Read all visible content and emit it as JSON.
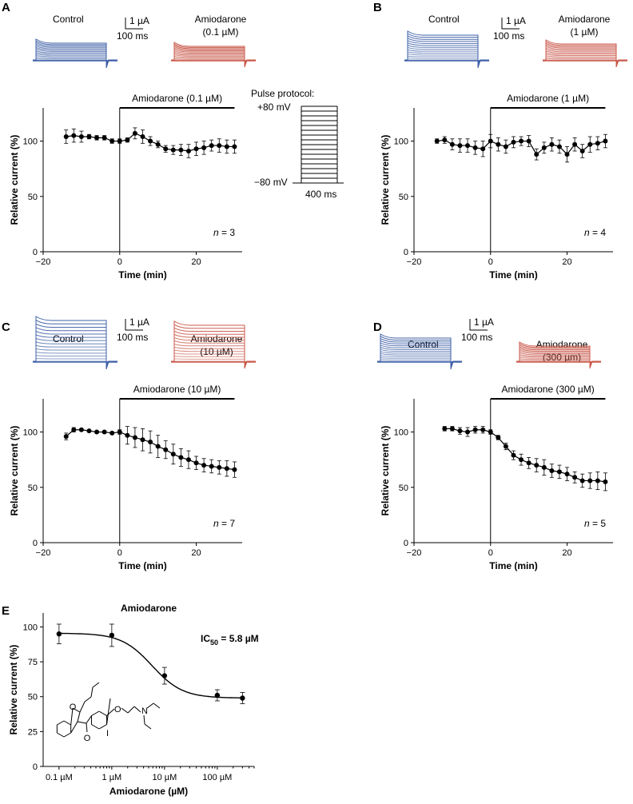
{
  "figure": {
    "units": {
      "current": "1 µA",
      "time": "100 ms"
    },
    "pulse": {
      "title": "Pulse protocol:",
      "top": "+80 mV",
      "bottom": "−80 mV",
      "duration": "400 ms"
    },
    "colors": {
      "control": "#3d5fa6",
      "drug": "#c9584a"
    }
  },
  "panels": [
    {
      "letter": "A",
      "control_label": "Control",
      "drug_label_line1": "Amiodarone",
      "drug_label_line2": "(0.1 µM)",
      "bar_label": "Amiodarone (0.1 µM)",
      "n": "3"
    },
    {
      "letter": "B",
      "control_label": "Control",
      "drug_label_line1": "Amiodarone",
      "drug_label_line2": "(1 µM)",
      "bar_label": "Amiodarone (1 µM)",
      "n": "4"
    },
    {
      "letter": "C",
      "control_label": "Control",
      "drug_label_line1": "Amiodarone",
      "drug_label_line2": "(10 µM)",
      "bar_label": "Amiodarone (10 µM)",
      "n": "7"
    },
    {
      "letter": "D",
      "control_label": "Control",
      "drug_label_line1": "Amiodarone",
      "drug_label_line2": "(300 µm)",
      "bar_label": "Amiodarone (300 µM)",
      "n": "5"
    }
  ],
  "panelE": {
    "letter": "E",
    "title": "Amiodarone",
    "ic50_main": "IC",
    "ic50_sub": "50",
    "ic50_rest": " = 5.8 µM"
  },
  "chart_data": [
    {
      "type": "line",
      "panel": "A",
      "xlabel": "Time (min)",
      "ylabel": "Relative current (%)",
      "xlim": [
        -20,
        32
      ],
      "ylim": [
        0,
        130
      ],
      "xticks": [
        -20,
        0,
        20
      ],
      "yticks": [
        0,
        50,
        100
      ],
      "drug_start": 0,
      "drug_end": 30,
      "x": [
        -14,
        -12,
        -10,
        -8,
        -6,
        -4,
        -2,
        0,
        2,
        4,
        6,
        8,
        10,
        12,
        14,
        16,
        18,
        20,
        22,
        24,
        26,
        28,
        30
      ],
      "y": [
        104,
        105,
        104,
        104,
        103,
        103,
        100,
        100,
        101,
        107,
        104,
        100,
        97,
        93,
        92,
        92,
        91,
        93,
        94,
        96,
        96,
        95,
        95
      ],
      "err": [
        6,
        6,
        5,
        2,
        2,
        2,
        2,
        2,
        2,
        5,
        6,
        4,
        3,
        3,
        4,
        5,
        6,
        6,
        6,
        5,
        6,
        6,
        6
      ]
    },
    {
      "type": "line",
      "panel": "B",
      "xlabel": "Time (min)",
      "ylabel": "Relative current (%)",
      "xlim": [
        -20,
        32
      ],
      "ylim": [
        0,
        130
      ],
      "xticks": [
        -20,
        0,
        20
      ],
      "yticks": [
        0,
        50,
        100
      ],
      "drug_start": 0,
      "drug_end": 30,
      "x": [
        -14,
        -12,
        -10,
        -8,
        -6,
        -4,
        -2,
        0,
        2,
        4,
        6,
        8,
        10,
        12,
        14,
        16,
        18,
        20,
        22,
        24,
        26,
        28,
        30
      ],
      "y": [
        100,
        101,
        97,
        96,
        96,
        94,
        93,
        100,
        97,
        95,
        99,
        100,
        100,
        88,
        94,
        97,
        95,
        88,
        97,
        91,
        97,
        98,
        100
      ],
      "err": [
        2,
        3,
        5,
        6,
        6,
        6,
        7,
        6,
        6,
        6,
        5,
        4,
        5,
        5,
        5,
        6,
        6,
        7,
        6,
        6,
        7,
        6,
        6
      ]
    },
    {
      "type": "line",
      "panel": "C",
      "xlabel": "Time (min)",
      "ylabel": "Relative current (%)",
      "xlim": [
        -20,
        32
      ],
      "ylim": [
        0,
        130
      ],
      "xticks": [
        -20,
        0,
        20
      ],
      "yticks": [
        0,
        50,
        100
      ],
      "drug_start": 0,
      "drug_end": 30,
      "x": [
        -14,
        -12,
        -10,
        -8,
        -6,
        -4,
        -2,
        0,
        2,
        4,
        6,
        8,
        10,
        12,
        14,
        16,
        18,
        20,
        22,
        24,
        26,
        28,
        30
      ],
      "y": [
        96,
        102,
        102,
        101,
        100,
        100,
        99,
        100,
        97,
        95,
        93,
        91,
        87,
        84,
        80,
        77,
        75,
        72,
        70,
        69,
        68,
        67,
        66
      ],
      "err": [
        3,
        2,
        1,
        1,
        1,
        1,
        1,
        2,
        8,
        9,
        10,
        10,
        10,
        8,
        9,
        8,
        8,
        6,
        6,
        6,
        6,
        7,
        7
      ]
    },
    {
      "type": "line",
      "panel": "D",
      "xlabel": "Time (min)",
      "ylabel": "Relative current (%)",
      "xlim": [
        -20,
        32
      ],
      "ylim": [
        0,
        130
      ],
      "xticks": [
        -20,
        0,
        20
      ],
      "yticks": [
        0,
        50,
        100
      ],
      "drug_start": 0,
      "drug_end": 30,
      "x": [
        -12,
        -10,
        -8,
        -6,
        -4,
        -2,
        0,
        2,
        4,
        6,
        8,
        10,
        12,
        14,
        16,
        18,
        20,
        22,
        24,
        26,
        28,
        30
      ],
      "y": [
        103,
        103,
        101,
        100,
        102,
        102,
        100,
        95,
        87,
        79,
        75,
        72,
        70,
        68,
        65,
        64,
        62,
        59,
        56,
        56,
        56,
        55
      ],
      "err": [
        2,
        2,
        3,
        4,
        3,
        3,
        2,
        2,
        3,
        4,
        5,
        5,
        6,
        7,
        6,
        6,
        6,
        5,
        6,
        7,
        8,
        8
      ]
    },
    {
      "type": "scatter",
      "panel": "E",
      "xlabel": "Amiodarone (µM)",
      "ylabel": "Relative current (%)",
      "xscale": "log",
      "xlim": [
        0.05,
        500
      ],
      "ylim": [
        0,
        110
      ],
      "xticks": [
        0.1,
        1,
        10,
        100
      ],
      "xtick_labels": [
        "0.1 µM",
        "1 µM",
        "10 µM",
        "100 µM"
      ],
      "yticks": [
        0,
        25,
        50,
        75,
        100
      ],
      "x": [
        0.1,
        1,
        10,
        100,
        300
      ],
      "y": [
        95,
        94,
        65,
        51,
        49
      ],
      "err": [
        7,
        8,
        6,
        4,
        4
      ],
      "fit": {
        "top": 95.5,
        "bottom": 49,
        "ic50": 5.8,
        "hill": 1.5
      }
    }
  ]
}
